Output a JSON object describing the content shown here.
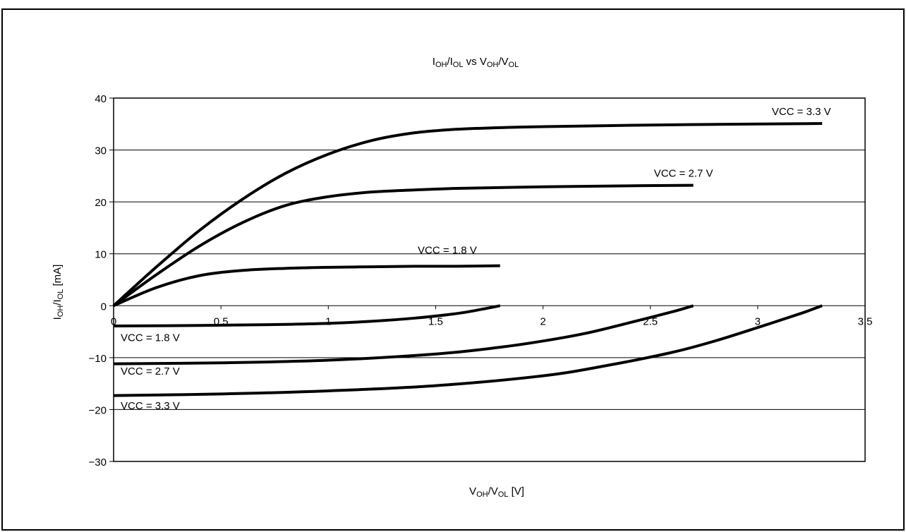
{
  "chart_data": {
    "type": "line",
    "title": {
      "main": "I",
      "sub1": "OH",
      "mid": "/I",
      "sub2": "OL",
      "rest": " vs V",
      "sub3": "OH",
      "mid2": "/V",
      "sub4": "OL"
    },
    "xlabel": {
      "main": "V",
      "sub1": "OH",
      "mid": "/V",
      "sub2": "OL",
      "rest": " [V]"
    },
    "ylabel": {
      "main": "I",
      "sub1": "OH",
      "mid": "/I",
      "sub2": "OL",
      "rest": " [mA]"
    },
    "xlim": [
      0,
      3.5
    ],
    "ylim": [
      -30,
      40
    ],
    "x_ticks": [
      0,
      0.5,
      1,
      1.5,
      2,
      2.5,
      3,
      3.5
    ],
    "x_tick_labels": [
      "0",
      "0.5",
      "1",
      "1.5",
      "2",
      "2.5",
      "3",
      "3.5"
    ],
    "y_ticks": [
      40,
      30,
      20,
      10,
      0,
      -10,
      -20,
      -30
    ],
    "y_tick_labels": [
      "40",
      "30",
      "20",
      "10",
      "0",
      "−10",
      "−20",
      "−30"
    ],
    "grid": "horizontal",
    "series": [
      {
        "name": "VCC = 3.3 V",
        "direction": "high",
        "x": [
          0,
          0.2,
          0.4,
          0.6,
          0.8,
          1.0,
          1.2,
          1.4,
          1.6,
          1.8,
          2.0,
          2.5,
          3.0,
          3.3
        ],
        "y": [
          0,
          7.5,
          14.5,
          20.5,
          25.5,
          29.2,
          31.8,
          33.3,
          34.0,
          34.3,
          34.5,
          34.8,
          35.0,
          35.1
        ]
      },
      {
        "name": "VCC = 2.7 V",
        "direction": "high",
        "x": [
          0,
          0.2,
          0.4,
          0.6,
          0.8,
          1.0,
          1.2,
          1.4,
          1.6,
          2.0,
          2.4,
          2.7
        ],
        "y": [
          0,
          6.0,
          11.5,
          16.0,
          19.3,
          21.0,
          21.9,
          22.3,
          22.6,
          22.9,
          23.1,
          23.2
        ]
      },
      {
        "name": "VCC = 1.8 V",
        "direction": "high",
        "x": [
          0,
          0.2,
          0.4,
          0.6,
          0.8,
          1.0,
          1.2,
          1.4,
          1.6,
          1.8
        ],
        "y": [
          0,
          3.5,
          5.8,
          6.8,
          7.2,
          7.4,
          7.5,
          7.6,
          7.6,
          7.7
        ]
      },
      {
        "name": "VCC = 1.8 V",
        "direction": "low",
        "x": [
          0,
          0.4,
          0.8,
          1.0,
          1.2,
          1.4,
          1.6,
          1.7,
          1.8
        ],
        "y": [
          -3.9,
          -3.8,
          -3.6,
          -3.4,
          -3.0,
          -2.4,
          -1.5,
          -0.8,
          0
        ]
      },
      {
        "name": "VCC = 2.7 V",
        "direction": "low",
        "x": [
          0,
          0.5,
          1.0,
          1.5,
          1.8,
          2.0,
          2.2,
          2.4,
          2.6,
          2.7
        ],
        "y": [
          -11.2,
          -11.0,
          -10.5,
          -9.3,
          -8.0,
          -6.8,
          -5.3,
          -3.3,
          -1.2,
          0
        ]
      },
      {
        "name": "VCC = 3.3 V",
        "direction": "low",
        "x": [
          0,
          0.5,
          1.0,
          1.5,
          2.0,
          2.3,
          2.6,
          2.8,
          3.0,
          3.2,
          3.3
        ],
        "y": [
          -17.3,
          -17.0,
          -16.4,
          -15.4,
          -13.5,
          -11.5,
          -9.0,
          -6.8,
          -4.2,
          -1.5,
          0
        ]
      }
    ]
  }
}
